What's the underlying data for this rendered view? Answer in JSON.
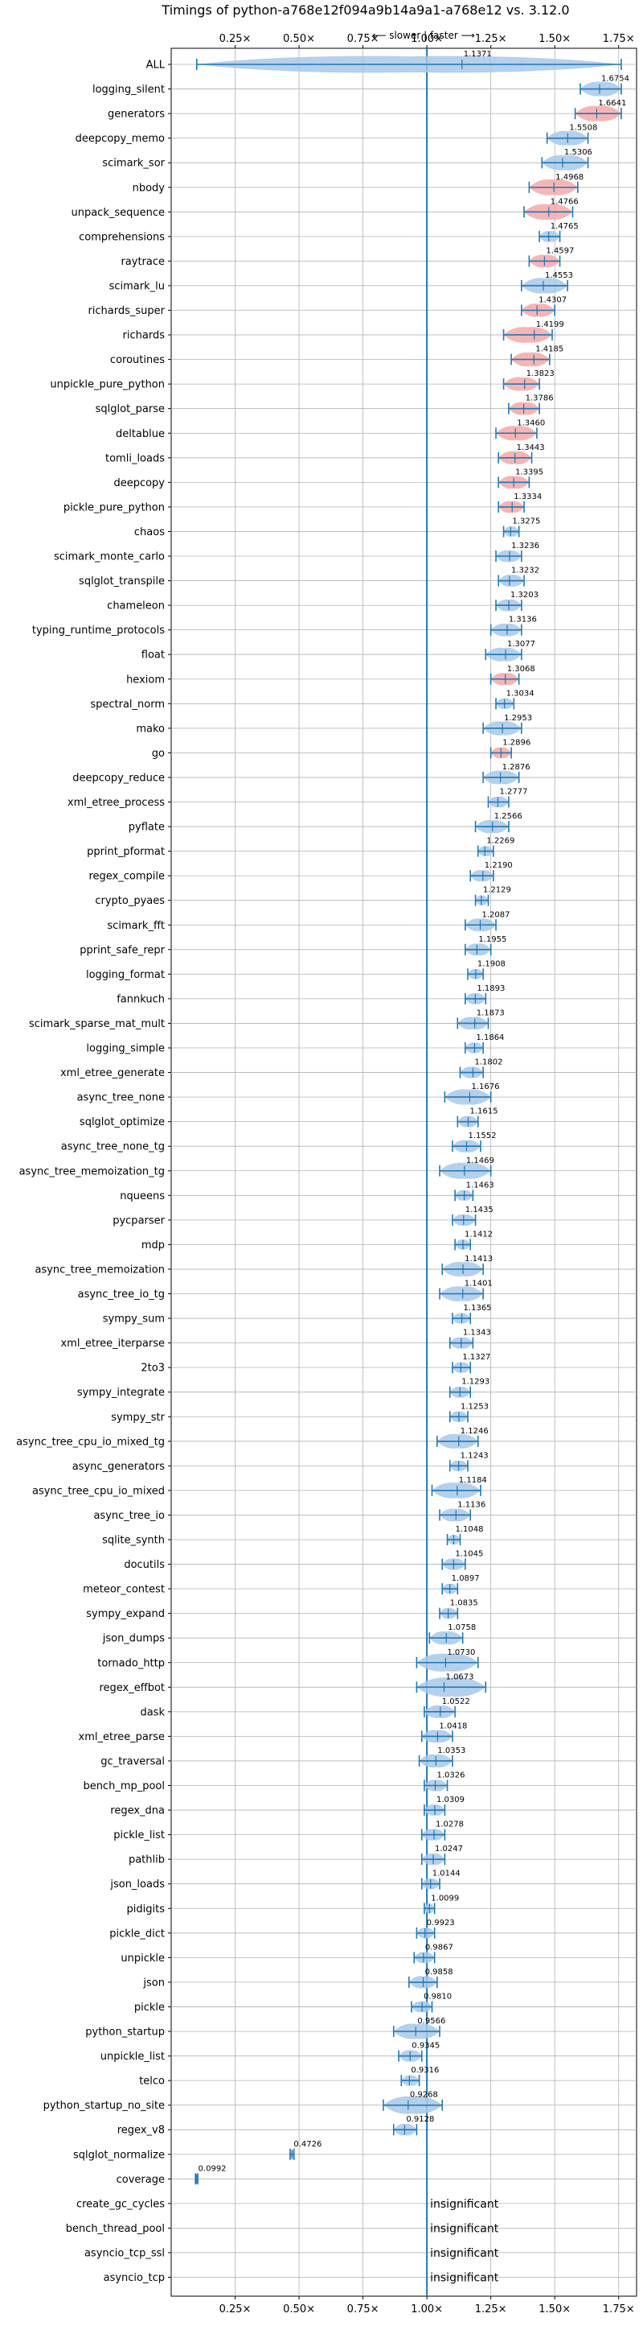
{
  "chart_data": {
    "type": "violin",
    "title": "Timings of python-a768e12f094a9b14a9a1-a768e12 vs. 3.12.0",
    "subtitle": "⟵ slower | faster ⟶",
    "x_ticks": [
      "0.25×",
      "0.50×",
      "0.75×",
      "1.00×",
      "1.25×",
      "1.50×",
      "1.75×"
    ],
    "x_tick_values": [
      0.25,
      0.5,
      0.75,
      1.0,
      1.25,
      1.5,
      1.75
    ],
    "xlim": [
      0.0,
      1.82
    ],
    "reference_line": 1.0,
    "insignificant_label": "insignificant",
    "colors": {
      "faster": "#a8c8e8",
      "slower_highlight": "#f4a8a8",
      "errorbar": "#1f77b4",
      "grid": "#b0b0b0"
    },
    "benchmarks": [
      {
        "name": "ALL",
        "label": "1.1371",
        "mean": 1.1371,
        "lo": 0.1,
        "hi": 1.76,
        "color": "blue"
      },
      {
        "name": "logging_silent",
        "label": "1.6754",
        "mean": 1.6754,
        "lo": 1.6,
        "hi": 1.76,
        "color": "blue"
      },
      {
        "name": "generators",
        "label": "1.6641",
        "mean": 1.6641,
        "lo": 1.58,
        "hi": 1.76,
        "color": "red"
      },
      {
        "name": "deepcopy_memo",
        "label": "1.5508",
        "mean": 1.5508,
        "lo": 1.47,
        "hi": 1.63,
        "color": "blue"
      },
      {
        "name": "scimark_sor",
        "label": "1.5306",
        "mean": 1.5306,
        "lo": 1.45,
        "hi": 1.63,
        "color": "blue"
      },
      {
        "name": "nbody",
        "label": "1.4968",
        "mean": 1.4968,
        "lo": 1.4,
        "hi": 1.59,
        "color": "red"
      },
      {
        "name": "unpack_sequence",
        "label": "1.4766",
        "mean": 1.4766,
        "lo": 1.38,
        "hi": 1.57,
        "color": "red"
      },
      {
        "name": "comprehensions",
        "label": "1.4765",
        "mean": 1.4765,
        "lo": 1.44,
        "hi": 1.52,
        "color": "blue"
      },
      {
        "name": "raytrace",
        "label": "1.4597",
        "mean": 1.4597,
        "lo": 1.4,
        "hi": 1.52,
        "color": "red"
      },
      {
        "name": "scimark_lu",
        "label": "1.4553",
        "mean": 1.4553,
        "lo": 1.37,
        "hi": 1.55,
        "color": "blue"
      },
      {
        "name": "richards_super",
        "label": "1.4307",
        "mean": 1.4307,
        "lo": 1.37,
        "hi": 1.5,
        "color": "red"
      },
      {
        "name": "richards",
        "label": "1.4199",
        "mean": 1.4199,
        "lo": 1.3,
        "hi": 1.49,
        "color": "red"
      },
      {
        "name": "coroutines",
        "label": "1.4185",
        "mean": 1.4185,
        "lo": 1.33,
        "hi": 1.48,
        "color": "red"
      },
      {
        "name": "unpickle_pure_python",
        "label": "1.3823",
        "mean": 1.3823,
        "lo": 1.3,
        "hi": 1.44,
        "color": "red"
      },
      {
        "name": "sqlglot_parse",
        "label": "1.3786",
        "mean": 1.3786,
        "lo": 1.32,
        "hi": 1.44,
        "color": "red"
      },
      {
        "name": "deltablue",
        "label": "1.3460",
        "mean": 1.346,
        "lo": 1.27,
        "hi": 1.43,
        "color": "red"
      },
      {
        "name": "tomli_loads",
        "label": "1.3443",
        "mean": 1.3443,
        "lo": 1.28,
        "hi": 1.41,
        "color": "red"
      },
      {
        "name": "deepcopy",
        "label": "1.3395",
        "mean": 1.3395,
        "lo": 1.28,
        "hi": 1.4,
        "color": "red"
      },
      {
        "name": "pickle_pure_python",
        "label": "1.3334",
        "mean": 1.3334,
        "lo": 1.28,
        "hi": 1.38,
        "color": "red"
      },
      {
        "name": "chaos",
        "label": "1.3275",
        "mean": 1.3275,
        "lo": 1.3,
        "hi": 1.36,
        "color": "blue"
      },
      {
        "name": "scimark_monte_carlo",
        "label": "1.3236",
        "mean": 1.3236,
        "lo": 1.27,
        "hi": 1.37,
        "color": "blue"
      },
      {
        "name": "sqlglot_transpile",
        "label": "1.3232",
        "mean": 1.3232,
        "lo": 1.28,
        "hi": 1.38,
        "color": "blue"
      },
      {
        "name": "chameleon",
        "label": "1.3203",
        "mean": 1.3203,
        "lo": 1.27,
        "hi": 1.37,
        "color": "blue"
      },
      {
        "name": "typing_runtime_protocols",
        "label": "1.3136",
        "mean": 1.3136,
        "lo": 1.25,
        "hi": 1.37,
        "color": "blue"
      },
      {
        "name": "float",
        "label": "1.3077",
        "mean": 1.3077,
        "lo": 1.23,
        "hi": 1.37,
        "color": "blue"
      },
      {
        "name": "hexiom",
        "label": "1.3068",
        "mean": 1.3068,
        "lo": 1.25,
        "hi": 1.36,
        "color": "red"
      },
      {
        "name": "spectral_norm",
        "label": "1.3034",
        "mean": 1.3034,
        "lo": 1.27,
        "hi": 1.34,
        "color": "blue"
      },
      {
        "name": "mako",
        "label": "1.2953",
        "mean": 1.2953,
        "lo": 1.22,
        "hi": 1.37,
        "color": "blue"
      },
      {
        "name": "go",
        "label": "1.2896",
        "mean": 1.2896,
        "lo": 1.25,
        "hi": 1.33,
        "color": "red"
      },
      {
        "name": "deepcopy_reduce",
        "label": "1.2876",
        "mean": 1.2876,
        "lo": 1.22,
        "hi": 1.36,
        "color": "blue"
      },
      {
        "name": "xml_etree_process",
        "label": "1.2777",
        "mean": 1.2777,
        "lo": 1.24,
        "hi": 1.32,
        "color": "blue"
      },
      {
        "name": "pyflate",
        "label": "1.2566",
        "mean": 1.2566,
        "lo": 1.19,
        "hi": 1.32,
        "color": "blue"
      },
      {
        "name": "pprint_pformat",
        "label": "1.2269",
        "mean": 1.2269,
        "lo": 1.2,
        "hi": 1.26,
        "color": "blue"
      },
      {
        "name": "regex_compile",
        "label": "1.2190",
        "mean": 1.219,
        "lo": 1.17,
        "hi": 1.26,
        "color": "blue"
      },
      {
        "name": "crypto_pyaes",
        "label": "1.2129",
        "mean": 1.2129,
        "lo": 1.19,
        "hi": 1.24,
        "color": "blue"
      },
      {
        "name": "scimark_fft",
        "label": "1.2087",
        "mean": 1.2087,
        "lo": 1.15,
        "hi": 1.27,
        "color": "blue"
      },
      {
        "name": "pprint_safe_repr",
        "label": "1.1955",
        "mean": 1.1955,
        "lo": 1.15,
        "hi": 1.25,
        "color": "blue"
      },
      {
        "name": "logging_format",
        "label": "1.1908",
        "mean": 1.1908,
        "lo": 1.16,
        "hi": 1.22,
        "color": "blue"
      },
      {
        "name": "fannkuch",
        "label": "1.1893",
        "mean": 1.1893,
        "lo": 1.15,
        "hi": 1.23,
        "color": "blue"
      },
      {
        "name": "scimark_sparse_mat_mult",
        "label": "1.1873",
        "mean": 1.1873,
        "lo": 1.12,
        "hi": 1.24,
        "color": "blue"
      },
      {
        "name": "logging_simple",
        "label": "1.1864",
        "mean": 1.1864,
        "lo": 1.15,
        "hi": 1.22,
        "color": "blue"
      },
      {
        "name": "xml_etree_generate",
        "label": "1.1802",
        "mean": 1.1802,
        "lo": 1.13,
        "hi": 1.22,
        "color": "blue"
      },
      {
        "name": "async_tree_none",
        "label": "1.1676",
        "mean": 1.1676,
        "lo": 1.07,
        "hi": 1.25,
        "color": "blue"
      },
      {
        "name": "sqlglot_optimize",
        "label": "1.1615",
        "mean": 1.1615,
        "lo": 1.12,
        "hi": 1.2,
        "color": "blue"
      },
      {
        "name": "async_tree_none_tg",
        "label": "1.1552",
        "mean": 1.1552,
        "lo": 1.1,
        "hi": 1.21,
        "color": "blue"
      },
      {
        "name": "async_tree_memoization_tg",
        "label": "1.1469",
        "mean": 1.1469,
        "lo": 1.05,
        "hi": 1.25,
        "color": "blue"
      },
      {
        "name": "nqueens",
        "label": "1.1463",
        "mean": 1.1463,
        "lo": 1.11,
        "hi": 1.18,
        "color": "blue"
      },
      {
        "name": "pycparser",
        "label": "1.1435",
        "mean": 1.1435,
        "lo": 1.1,
        "hi": 1.19,
        "color": "blue"
      },
      {
        "name": "mdp",
        "label": "1.1412",
        "mean": 1.1412,
        "lo": 1.11,
        "hi": 1.17,
        "color": "blue"
      },
      {
        "name": "async_tree_memoization",
        "label": "1.1413",
        "mean": 1.1413,
        "lo": 1.06,
        "hi": 1.22,
        "color": "blue"
      },
      {
        "name": "async_tree_io_tg",
        "label": "1.1401",
        "mean": 1.1401,
        "lo": 1.05,
        "hi": 1.22,
        "color": "blue"
      },
      {
        "name": "sympy_sum",
        "label": "1.1365",
        "mean": 1.1365,
        "lo": 1.1,
        "hi": 1.17,
        "color": "blue"
      },
      {
        "name": "xml_etree_iterparse",
        "label": "1.1343",
        "mean": 1.1343,
        "lo": 1.09,
        "hi": 1.18,
        "color": "blue"
      },
      {
        "name": "2to3",
        "label": "1.1327",
        "mean": 1.1327,
        "lo": 1.1,
        "hi": 1.17,
        "color": "blue"
      },
      {
        "name": "sympy_integrate",
        "label": "1.1293",
        "mean": 1.1293,
        "lo": 1.09,
        "hi": 1.17,
        "color": "blue"
      },
      {
        "name": "sympy_str",
        "label": "1.1253",
        "mean": 1.1253,
        "lo": 1.09,
        "hi": 1.16,
        "color": "blue"
      },
      {
        "name": "async_tree_cpu_io_mixed_tg",
        "label": "1.1246",
        "mean": 1.1246,
        "lo": 1.04,
        "hi": 1.2,
        "color": "blue"
      },
      {
        "name": "async_generators",
        "label": "1.1243",
        "mean": 1.1243,
        "lo": 1.09,
        "hi": 1.16,
        "color": "blue"
      },
      {
        "name": "async_tree_cpu_io_mixed",
        "label": "1.1184",
        "mean": 1.1184,
        "lo": 1.02,
        "hi": 1.21,
        "color": "blue"
      },
      {
        "name": "async_tree_io",
        "label": "1.1136",
        "mean": 1.1136,
        "lo": 1.05,
        "hi": 1.17,
        "color": "blue"
      },
      {
        "name": "sqlite_synth",
        "label": "1.1048",
        "mean": 1.1048,
        "lo": 1.08,
        "hi": 1.13,
        "color": "blue"
      },
      {
        "name": "docutils",
        "label": "1.1045",
        "mean": 1.1045,
        "lo": 1.06,
        "hi": 1.15,
        "color": "blue"
      },
      {
        "name": "meteor_contest",
        "label": "1.0897",
        "mean": 1.0897,
        "lo": 1.06,
        "hi": 1.12,
        "color": "blue"
      },
      {
        "name": "sympy_expand",
        "label": "1.0835",
        "mean": 1.0835,
        "lo": 1.05,
        "hi": 1.12,
        "color": "blue"
      },
      {
        "name": "json_dumps",
        "label": "1.0758",
        "mean": 1.0758,
        "lo": 1.01,
        "hi": 1.14,
        "color": "blue"
      },
      {
        "name": "tornado_http",
        "label": "1.0730",
        "mean": 1.073,
        "lo": 0.96,
        "hi": 1.2,
        "color": "blue"
      },
      {
        "name": "regex_effbot",
        "label": "1.0673",
        "mean": 1.0673,
        "lo": 0.96,
        "hi": 1.23,
        "color": "blue"
      },
      {
        "name": "dask",
        "label": "1.0522",
        "mean": 1.0522,
        "lo": 0.99,
        "hi": 1.11,
        "color": "blue"
      },
      {
        "name": "xml_etree_parse",
        "label": "1.0418",
        "mean": 1.0418,
        "lo": 0.98,
        "hi": 1.1,
        "color": "blue"
      },
      {
        "name": "gc_traversal",
        "label": "1.0353",
        "mean": 1.0353,
        "lo": 0.97,
        "hi": 1.1,
        "color": "blue"
      },
      {
        "name": "bench_mp_pool",
        "label": "1.0326",
        "mean": 1.0326,
        "lo": 0.99,
        "hi": 1.08,
        "color": "blue"
      },
      {
        "name": "regex_dna",
        "label": "1.0309",
        "mean": 1.0309,
        "lo": 0.99,
        "hi": 1.07,
        "color": "blue"
      },
      {
        "name": "pickle_list",
        "label": "1.0278",
        "mean": 1.0278,
        "lo": 0.98,
        "hi": 1.07,
        "color": "blue"
      },
      {
        "name": "pathlib",
        "label": "1.0247",
        "mean": 1.0247,
        "lo": 0.98,
        "hi": 1.07,
        "color": "blue"
      },
      {
        "name": "json_loads",
        "label": "1.0144",
        "mean": 1.0144,
        "lo": 0.98,
        "hi": 1.05,
        "color": "blue"
      },
      {
        "name": "pidigits",
        "label": "1.0099",
        "mean": 1.0099,
        "lo": 0.99,
        "hi": 1.03,
        "color": "blue"
      },
      {
        "name": "pickle_dict",
        "label": "0.9923",
        "mean": 0.9923,
        "lo": 0.96,
        "hi": 1.03,
        "color": "blue"
      },
      {
        "name": "unpickle",
        "label": "0.9867",
        "mean": 0.9867,
        "lo": 0.95,
        "hi": 1.03,
        "color": "blue"
      },
      {
        "name": "json",
        "label": "0.9858",
        "mean": 0.9858,
        "lo": 0.93,
        "hi": 1.04,
        "color": "blue"
      },
      {
        "name": "pickle",
        "label": "0.9810",
        "mean": 0.981,
        "lo": 0.94,
        "hi": 1.02,
        "color": "blue"
      },
      {
        "name": "python_startup",
        "label": "0.9566",
        "mean": 0.9566,
        "lo": 0.87,
        "hi": 1.05,
        "color": "blue"
      },
      {
        "name": "unpickle_list",
        "label": "0.9345",
        "mean": 0.9345,
        "lo": 0.89,
        "hi": 0.98,
        "color": "blue"
      },
      {
        "name": "telco",
        "label": "0.9316",
        "mean": 0.9316,
        "lo": 0.9,
        "hi": 0.97,
        "color": "blue"
      },
      {
        "name": "python_startup_no_site",
        "label": "0.9268",
        "mean": 0.9268,
        "lo": 0.83,
        "hi": 1.06,
        "color": "blue"
      },
      {
        "name": "regex_v8",
        "label": "0.9128",
        "mean": 0.9128,
        "lo": 0.87,
        "hi": 0.96,
        "color": "blue"
      },
      {
        "name": "sqlglot_normalize",
        "label": "0.4726",
        "mean": 0.4726,
        "lo": 0.465,
        "hi": 0.48,
        "color": "blue"
      },
      {
        "name": "coverage",
        "label": "0.0992",
        "mean": 0.0992,
        "lo": 0.095,
        "hi": 0.104,
        "color": "blue"
      },
      {
        "name": "create_gc_cycles",
        "label": "insignificant",
        "insignificant": true
      },
      {
        "name": "bench_thread_pool",
        "label": "insignificant",
        "insignificant": true
      },
      {
        "name": "asyncio_tcp_ssl",
        "label": "insignificant",
        "insignificant": true
      },
      {
        "name": "asyncio_tcp",
        "label": "insignificant",
        "insignificant": true
      }
    ]
  }
}
